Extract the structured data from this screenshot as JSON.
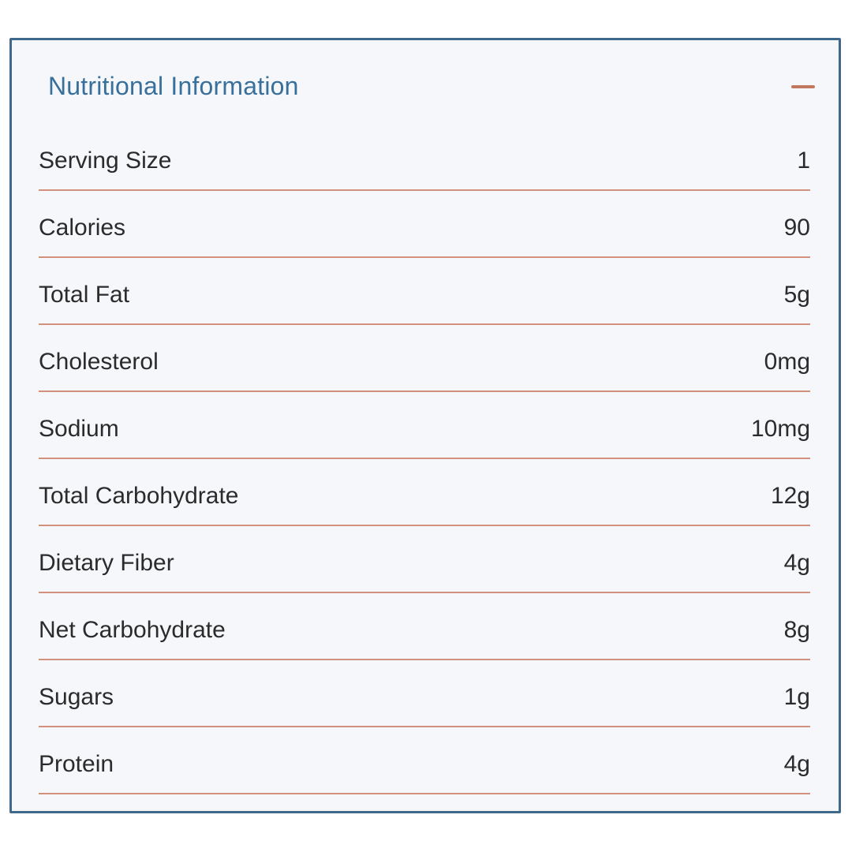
{
  "panel": {
    "title": "Nutritional Information",
    "collapse_icon": "minus-icon",
    "state": "expanded",
    "rows": [
      {
        "label": "Serving Size",
        "value": "1"
      },
      {
        "label": "Calories",
        "value": "90"
      },
      {
        "label": "Total Fat",
        "value": "5g"
      },
      {
        "label": "Cholesterol",
        "value": "0mg"
      },
      {
        "label": "Sodium",
        "value": "10mg"
      },
      {
        "label": "Total Carbohydrate",
        "value": "12g"
      },
      {
        "label": "Dietary Fiber",
        "value": "4g"
      },
      {
        "label": "Net Carbohydrate",
        "value": "8g"
      },
      {
        "label": "Sugars",
        "value": "1g"
      },
      {
        "label": "Protein",
        "value": "4g"
      }
    ]
  },
  "colors": {
    "panel_border": "#40688a",
    "panel_background": "#f6f7fa",
    "title": "#38709b",
    "text": "#2b2b2b",
    "divider": "#d2917c",
    "collapse_icon": "#c0795e",
    "page_background": "#ffffff"
  }
}
